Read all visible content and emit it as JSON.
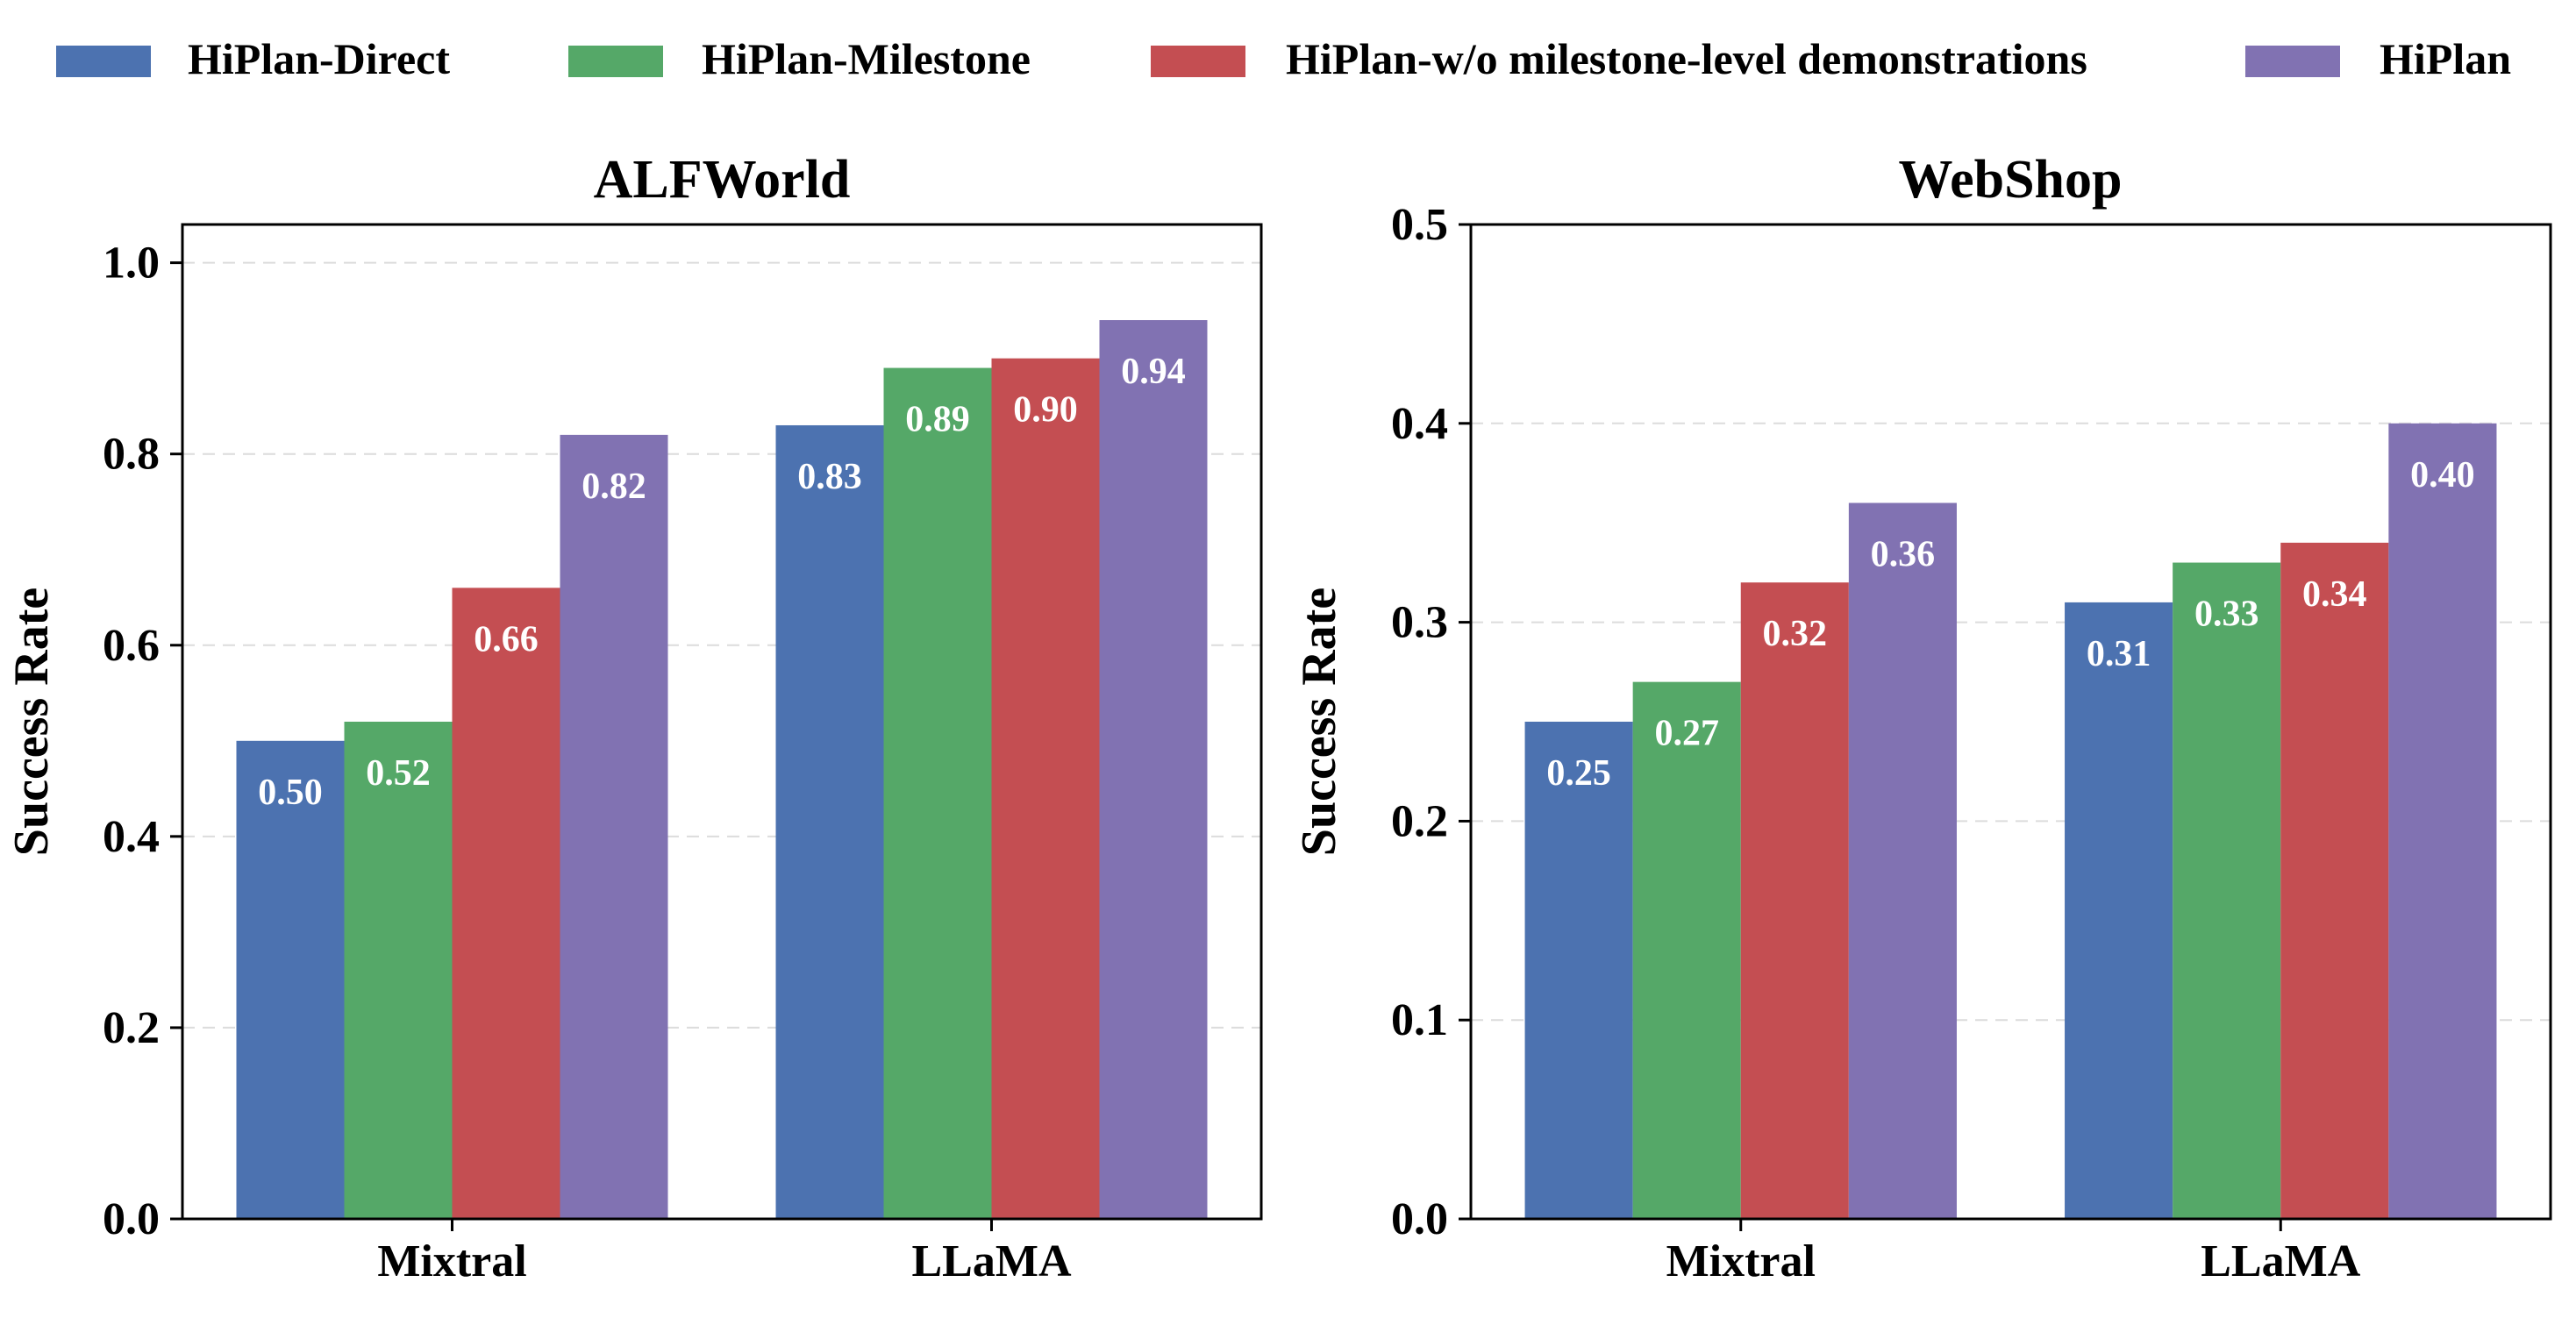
{
  "legend": {
    "items": [
      {
        "label": "HiPlan-Direct",
        "color": "#4C72B0"
      },
      {
        "label": "HiPlan-Milestone",
        "color": "#55A868"
      },
      {
        "label": "HiPlan-w/o milestone-level demonstrations",
        "color": "#C44E52"
      },
      {
        "label": "HiPlan",
        "color": "#8172B2"
      }
    ]
  },
  "chart_data": [
    {
      "type": "bar",
      "title": "ALFWorld",
      "xlabel": "",
      "ylabel": "Success Rate",
      "categories": [
        "Mixtral",
        "LLaMA"
      ],
      "ylim": [
        0,
        1.04
      ],
      "yticks": [
        0.0,
        0.2,
        0.4,
        0.6,
        0.8,
        1.0
      ],
      "ytick_labels": [
        "0.0",
        "0.2",
        "0.4",
        "0.6",
        "0.8",
        "1.0"
      ],
      "grid": "horizontal dashed",
      "series": [
        {
          "name": "HiPlan-Direct",
          "values": [
            0.5,
            0.83
          ],
          "labels": [
            "0.50",
            "0.83"
          ]
        },
        {
          "name": "HiPlan-Milestone",
          "values": [
            0.52,
            0.89
          ],
          "labels": [
            "0.52",
            "0.89"
          ]
        },
        {
          "name": "HiPlan-w/o milestone-level demonstrations",
          "values": [
            0.66,
            0.9
          ],
          "labels": [
            "0.66",
            "0.90"
          ]
        },
        {
          "name": "HiPlan",
          "values": [
            0.82,
            0.94
          ],
          "labels": [
            "0.82",
            "0.94"
          ]
        }
      ]
    },
    {
      "type": "bar",
      "title": "WebShop",
      "xlabel": "",
      "ylabel": "Success Rate",
      "categories": [
        "Mixtral",
        "LLaMA"
      ],
      "ylim": [
        0,
        0.5
      ],
      "yticks": [
        0.0,
        0.1,
        0.2,
        0.3,
        0.4,
        0.5
      ],
      "ytick_labels": [
        "0.0",
        "0.1",
        "0.2",
        "0.3",
        "0.4",
        "0.5"
      ],
      "grid": "horizontal dashed",
      "series": [
        {
          "name": "HiPlan-Direct",
          "values": [
            0.25,
            0.31
          ],
          "labels": [
            "0.25",
            "0.31"
          ]
        },
        {
          "name": "HiPlan-Milestone",
          "values": [
            0.27,
            0.33
          ],
          "labels": [
            "0.27",
            "0.33"
          ]
        },
        {
          "name": "HiPlan-w/o milestone-level demonstrations",
          "values": [
            0.32,
            0.34
          ],
          "labels": [
            "0.32",
            "0.34"
          ]
        },
        {
          "name": "HiPlan",
          "values": [
            0.36,
            0.4
          ],
          "labels": [
            "0.36",
            "0.40"
          ]
        }
      ]
    }
  ]
}
